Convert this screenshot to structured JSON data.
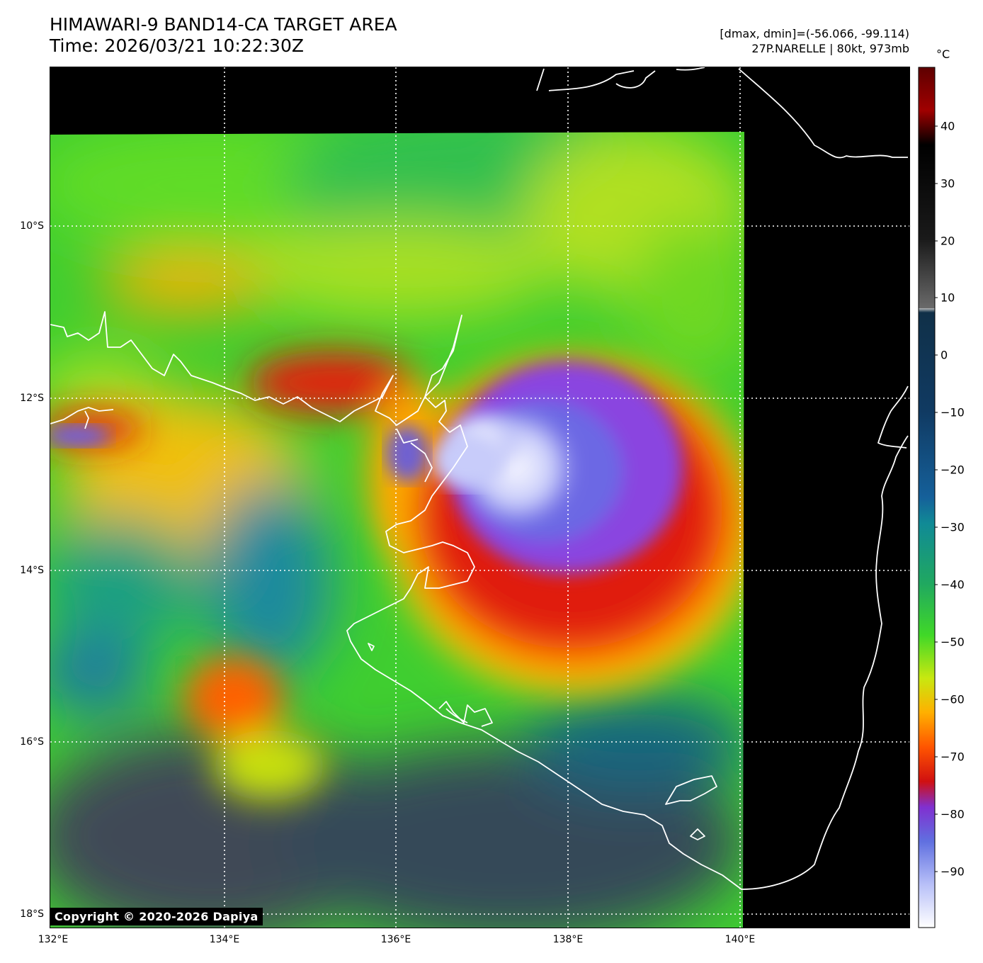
{
  "header": {
    "title_line1": "HIMAWARI-9 BAND14-CA TARGET AREA",
    "title_line2": "Time: 2026/03/21 10:22:30Z",
    "info_line1": "[dmax, dmin]=(-56.066, -99.114)",
    "info_line2": "27P.NARELLE | 80kt, 973mb"
  },
  "colorbar": {
    "unit": "°C",
    "ticks": [
      "40",
      "30",
      "20",
      "10",
      "0",
      "−10",
      "−20",
      "−30",
      "−40",
      "−50",
      "−60",
      "−70",
      "−80",
      "−90"
    ],
    "range": [
      -100,
      50
    ]
  },
  "axes": {
    "lat_labels": [
      "10°S",
      "12°S",
      "14°S",
      "16°S",
      "18°S"
    ],
    "lon_labels": [
      "132°E",
      "134°E",
      "136°E",
      "138°E",
      "140°E"
    ]
  },
  "copyright": "Copyright © 2020-2026 Dapiya",
  "colors": {
    "background_no_data": "#000000",
    "coastline": "#ffffff",
    "gridlines": "#ffffff"
  }
}
